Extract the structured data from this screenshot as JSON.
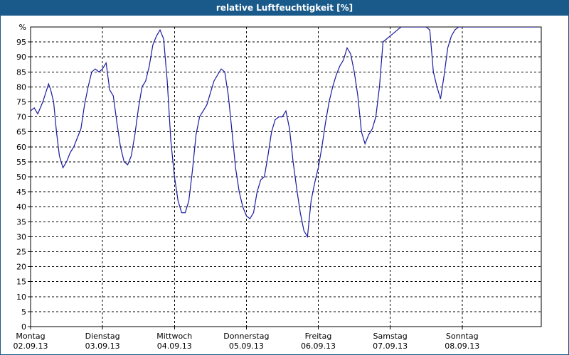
{
  "title": "relative Luftfeuchtigkeit [%]",
  "colors": {
    "title_bar": "#1a5a8a",
    "line": "#1a1aa0",
    "grid": "#000000",
    "axis": "#000000"
  },
  "chart_data": {
    "type": "line",
    "title": "relative Luftfeuchtigkeit [%]",
    "y_unit_label": "%",
    "ylim": [
      0,
      100
    ],
    "y_ticks": [
      0,
      5,
      10,
      15,
      20,
      25,
      30,
      35,
      40,
      45,
      50,
      55,
      60,
      65,
      70,
      75,
      80,
      85,
      90,
      95
    ],
    "xlim_days": [
      0,
      7.1
    ],
    "grid": true,
    "days": [
      {
        "name": "Montag",
        "date": "02.09.13"
      },
      {
        "name": "Dienstag",
        "date": "03.09.13"
      },
      {
        "name": "Mittwoch",
        "date": "04.09.13"
      },
      {
        "name": "Donnerstag",
        "date": "05.09.13"
      },
      {
        "name": "Freitag",
        "date": "06.09.13"
      },
      {
        "name": "Samstag",
        "date": "07.09.13"
      },
      {
        "name": "Sonntag",
        "date": "08.09.13"
      }
    ],
    "series": [
      {
        "x": [
          0.0,
          0.05,
          0.1,
          0.17,
          0.25,
          0.28,
          0.32,
          0.36,
          0.4,
          0.45,
          0.5,
          0.55,
          0.6,
          0.65,
          0.7,
          0.75,
          0.8,
          0.85,
          0.9,
          0.95,
          1.0,
          1.05,
          1.1,
          1.15,
          1.2,
          1.25,
          1.3,
          1.35,
          1.4,
          1.45,
          1.5,
          1.55,
          1.6,
          1.65,
          1.7,
          1.75,
          1.8,
          1.85,
          1.9,
          1.95,
          2.0,
          2.05,
          2.1,
          2.15,
          2.2,
          2.25,
          2.3,
          2.35,
          2.4,
          2.45,
          2.5,
          2.55,
          2.6,
          2.65,
          2.7,
          2.75,
          2.8,
          2.85,
          2.9,
          2.95,
          3.0,
          3.05,
          3.1,
          3.15,
          3.2,
          3.25,
          3.3,
          3.35,
          3.4,
          3.45,
          3.5,
          3.55,
          3.6,
          3.65,
          3.7,
          3.75,
          3.8,
          3.85,
          3.9,
          3.95,
          4.0,
          4.05,
          4.1,
          4.15,
          4.2,
          4.25,
          4.3,
          4.35,
          4.4,
          4.45,
          4.5,
          4.55,
          4.6,
          4.65,
          4.7,
          4.75,
          4.8,
          4.85,
          4.9,
          4.95,
          5.0,
          5.05,
          5.1,
          5.15,
          5.2,
          5.25,
          5.3,
          5.35,
          5.4,
          5.45,
          5.5,
          5.55,
          5.6,
          5.65,
          5.7,
          5.75,
          5.8,
          5.85,
          5.9,
          5.95,
          6.0,
          6.05,
          6.1,
          6.15,
          6.2,
          6.25,
          6.3,
          6.35,
          6.4,
          6.45,
          6.5,
          6.55,
          6.6,
          6.65,
          6.7,
          6.75,
          6.8,
          6.85,
          6.9,
          6.95,
          7.0,
          7.05
        ],
        "values": [
          72,
          73,
          71,
          75,
          81,
          79,
          75,
          65,
          57,
          53,
          55,
          58,
          60,
          63,
          66,
          74,
          80,
          85,
          86,
          85,
          86,
          88,
          79,
          77,
          68,
          60,
          55,
          54,
          57,
          64,
          73,
          80,
          82,
          87,
          94,
          97,
          99,
          96,
          82,
          62,
          50,
          42,
          38,
          38,
          42,
          52,
          64,
          70,
          72,
          74,
          78,
          82,
          84,
          86,
          85,
          77,
          65,
          53,
          45,
          40,
          37,
          36,
          38,
          45,
          49,
          50,
          57,
          65,
          69,
          70,
          70,
          72,
          66,
          55,
          46,
          38,
          32,
          30,
          42,
          48,
          53,
          60,
          68,
          75,
          80,
          84,
          87,
          89,
          93,
          91,
          85,
          77,
          65,
          61,
          64,
          66,
          70,
          80,
          95,
          96,
          97,
          98,
          99,
          100,
          100,
          100,
          100,
          100,
          100,
          100,
          100,
          99,
          85,
          80,
          76,
          84,
          93,
          97,
          99,
          100,
          100,
          100,
          100,
          100,
          100,
          100,
          100,
          100,
          100,
          100,
          100,
          100,
          100,
          100,
          100,
          100,
          100,
          100,
          100,
          100,
          100,
          100
        ]
      }
    ]
  }
}
